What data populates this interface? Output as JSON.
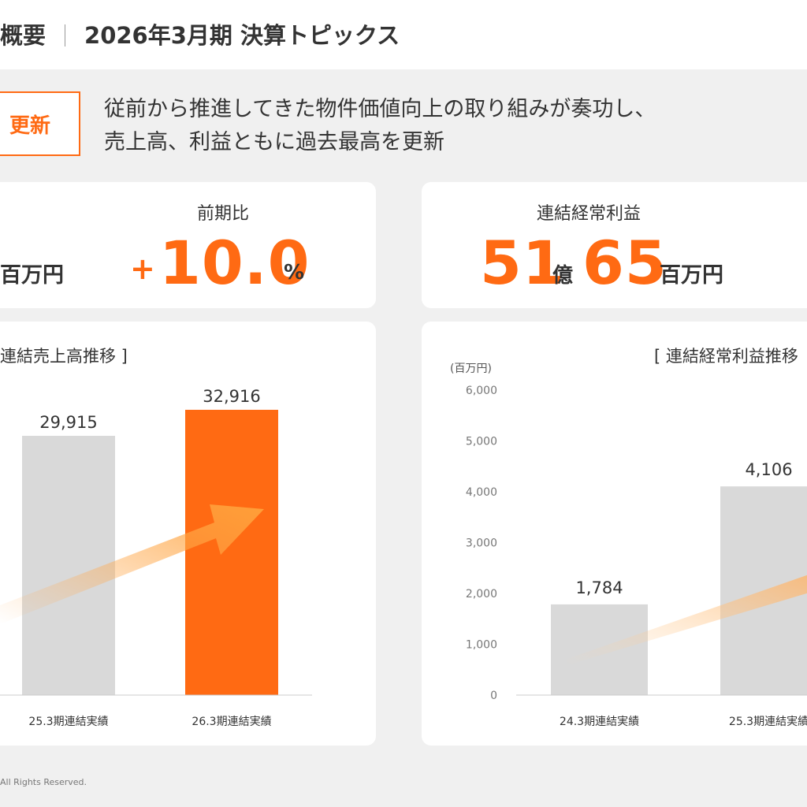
{
  "header": {
    "section": "概要",
    "title": "2026年3月期 決算トピックス"
  },
  "badge": {
    "label": "更新"
  },
  "lead": {
    "line1": "従前から推進してきた物件価値向上の取り組みが奏功し、",
    "line2": "売上高、利益ともに過去最高を更新"
  },
  "kpi_sales": {
    "unit": "百万円",
    "ratio_label": "前期比",
    "sign": "+",
    "value": "10.0",
    "percent": "%"
  },
  "kpi_profit": {
    "label": "連結経常利益",
    "oku": "51",
    "oku_unit": "億",
    "man": "65",
    "unit": "百万円"
  },
  "colors": {
    "accent": "#ff6a13",
    "bar_gray": "#d9d9d9"
  },
  "chart_data": [
    {
      "type": "bar",
      "title": "連結売上高推移 ]",
      "categories": [
        "25.3期連結実績",
        "26.3期連結実績"
      ],
      "values": [
        29915,
        32916
      ],
      "value_labels": [
        "29,915",
        "32,916"
      ],
      "highlight_index": 1,
      "grid": false
    },
    {
      "type": "bar",
      "title": "[ 連結経常利益推移",
      "ylabel": "(百万円)",
      "categories": [
        "24.3期連結実績",
        "25.3期連結実績"
      ],
      "values": [
        1784,
        4106
      ],
      "value_labels": [
        "1,784",
        "4,106"
      ],
      "ylim": [
        0,
        6000
      ],
      "yticks": [
        "0",
        "1,000",
        "2,000",
        "3,000",
        "4,000",
        "5,000",
        "6,000"
      ],
      "grid": false
    }
  ],
  "footer": {
    "text": "All Rights Reserved."
  }
}
